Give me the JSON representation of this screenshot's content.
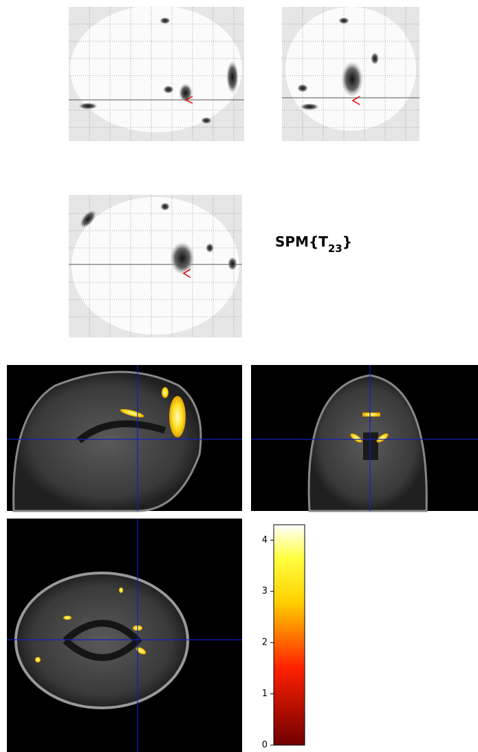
{
  "label": {
    "prefix": "SPM{T",
    "subscript": "23",
    "suffix": "}"
  },
  "colorbar": {
    "lim": [
      0,
      4.3
    ],
    "ticks": [
      0,
      1,
      2,
      3,
      4
    ]
  }
}
